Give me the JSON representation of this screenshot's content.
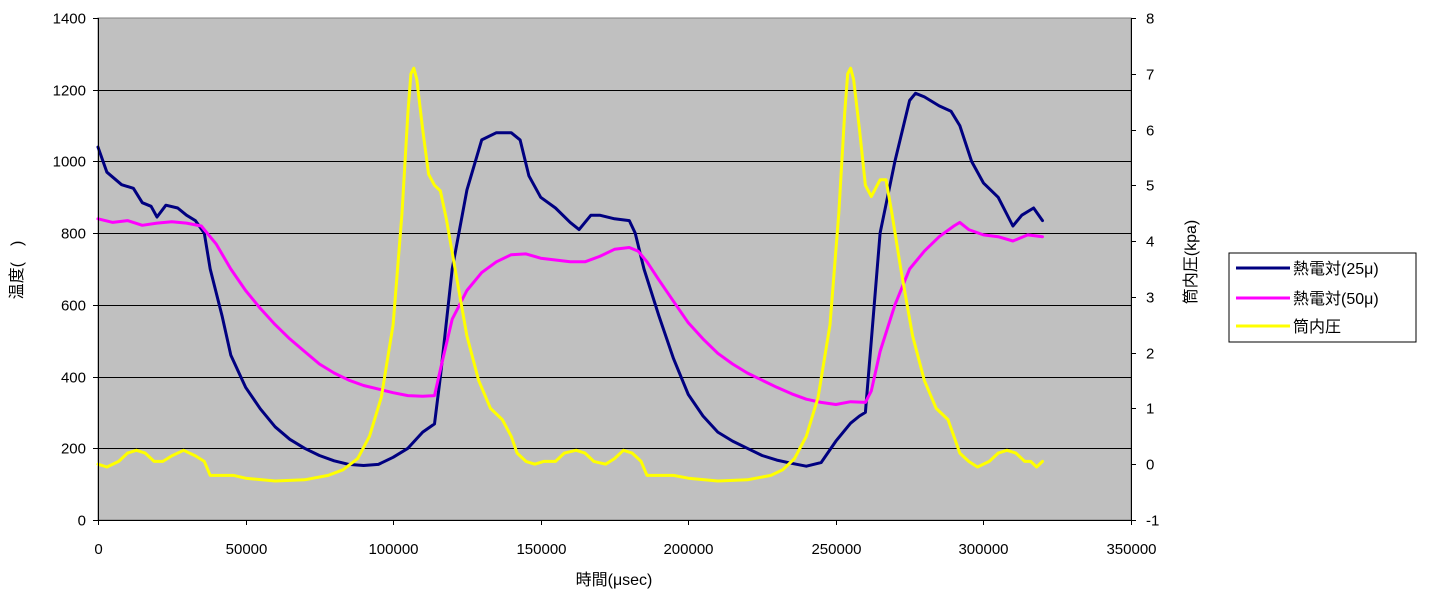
{
  "chart_data": {
    "type": "line",
    "title": "",
    "xlabel": "時間(μsec)",
    "ylabel": "温度(　)",
    "y2label": "筒内圧(kpa)",
    "xlim": [
      0,
      350000
    ],
    "ylim": [
      0,
      1400
    ],
    "y2lim": [
      -1,
      8
    ],
    "x_ticks": [
      0,
      50000,
      100000,
      150000,
      200000,
      250000,
      300000,
      350000
    ],
    "y_ticks": [
      0,
      200,
      400,
      600,
      800,
      1000,
      1200,
      1400
    ],
    "y2_ticks": [
      -1,
      0,
      1,
      2,
      3,
      4,
      5,
      6,
      7,
      8
    ],
    "grid": true,
    "plot_background": "#C0C0C0",
    "legend_position": "right",
    "series": [
      {
        "name": "熱電対(25μ)",
        "axis": "left",
        "color": "#000080",
        "points": [
          [
            0,
            1040
          ],
          [
            3000,
            970
          ],
          [
            8000,
            935
          ],
          [
            12000,
            925
          ],
          [
            15000,
            885
          ],
          [
            18000,
            875
          ],
          [
            20000,
            845
          ],
          [
            23000,
            878
          ],
          [
            27000,
            870
          ],
          [
            30000,
            850
          ],
          [
            33000,
            835
          ],
          [
            36000,
            800
          ],
          [
            38000,
            700
          ],
          [
            42000,
            570
          ],
          [
            45000,
            460
          ],
          [
            50000,
            370
          ],
          [
            55000,
            310
          ],
          [
            60000,
            260
          ],
          [
            65000,
            225
          ],
          [
            70000,
            200
          ],
          [
            75000,
            180
          ],
          [
            80000,
            165
          ],
          [
            85000,
            155
          ],
          [
            90000,
            152
          ],
          [
            95000,
            155
          ],
          [
            100000,
            175
          ],
          [
            105000,
            200
          ],
          [
            110000,
            245
          ],
          [
            114000,
            268
          ],
          [
            116000,
            400
          ],
          [
            120000,
            700
          ],
          [
            125000,
            920
          ],
          [
            130000,
            1060
          ],
          [
            135000,
            1080
          ],
          [
            140000,
            1080
          ],
          [
            143000,
            1060
          ],
          [
            146000,
            960
          ],
          [
            150000,
            900
          ],
          [
            155000,
            870
          ],
          [
            160000,
            830
          ],
          [
            163000,
            810
          ],
          [
            167000,
            850
          ],
          [
            170000,
            850
          ],
          [
            175000,
            840
          ],
          [
            180000,
            835
          ],
          [
            182000,
            800
          ],
          [
            185000,
            700
          ],
          [
            190000,
            570
          ],
          [
            195000,
            450
          ],
          [
            200000,
            350
          ],
          [
            205000,
            290
          ],
          [
            210000,
            245
          ],
          [
            215000,
            220
          ],
          [
            220000,
            200
          ],
          [
            225000,
            180
          ],
          [
            230000,
            167
          ],
          [
            235000,
            158
          ],
          [
            240000,
            150
          ],
          [
            245000,
            160
          ],
          [
            250000,
            220
          ],
          [
            255000,
            270
          ],
          [
            258000,
            290
          ],
          [
            260000,
            300
          ],
          [
            262000,
            500
          ],
          [
            265000,
            800
          ],
          [
            270000,
            1000
          ],
          [
            275000,
            1170
          ],
          [
            277000,
            1190
          ],
          [
            280000,
            1180
          ],
          [
            285000,
            1155
          ],
          [
            289000,
            1140
          ],
          [
            292000,
            1100
          ],
          [
            296000,
            1000
          ],
          [
            300000,
            940
          ],
          [
            305000,
            900
          ],
          [
            310000,
            820
          ],
          [
            313000,
            850
          ],
          [
            317000,
            870
          ],
          [
            320000,
            835
          ]
        ]
      },
      {
        "name": "熱電対(50μ)",
        "axis": "left",
        "color": "#FF00FF",
        "points": [
          [
            0,
            840
          ],
          [
            5000,
            830
          ],
          [
            10000,
            835
          ],
          [
            15000,
            822
          ],
          [
            20000,
            828
          ],
          [
            25000,
            832
          ],
          [
            30000,
            828
          ],
          [
            35000,
            820
          ],
          [
            40000,
            770
          ],
          [
            45000,
            700
          ],
          [
            50000,
            640
          ],
          [
            55000,
            590
          ],
          [
            60000,
            545
          ],
          [
            65000,
            505
          ],
          [
            70000,
            470
          ],
          [
            75000,
            435
          ],
          [
            80000,
            410
          ],
          [
            85000,
            390
          ],
          [
            90000,
            375
          ],
          [
            95000,
            365
          ],
          [
            100000,
            355
          ],
          [
            105000,
            347
          ],
          [
            110000,
            345
          ],
          [
            114000,
            347
          ],
          [
            116000,
            420
          ],
          [
            120000,
            560
          ],
          [
            125000,
            640
          ],
          [
            130000,
            690
          ],
          [
            135000,
            720
          ],
          [
            140000,
            740
          ],
          [
            145000,
            742
          ],
          [
            150000,
            730
          ],
          [
            155000,
            725
          ],
          [
            160000,
            720
          ],
          [
            165000,
            720
          ],
          [
            170000,
            735
          ],
          [
            175000,
            755
          ],
          [
            180000,
            760
          ],
          [
            183000,
            750
          ],
          [
            186000,
            720
          ],
          [
            190000,
            670
          ],
          [
            195000,
            610
          ],
          [
            200000,
            550
          ],
          [
            205000,
            505
          ],
          [
            210000,
            465
          ],
          [
            215000,
            435
          ],
          [
            220000,
            410
          ],
          [
            225000,
            390
          ],
          [
            230000,
            370
          ],
          [
            235000,
            352
          ],
          [
            240000,
            337
          ],
          [
            245000,
            328
          ],
          [
            250000,
            322
          ],
          [
            255000,
            330
          ],
          [
            260000,
            328
          ],
          [
            262000,
            360
          ],
          [
            265000,
            470
          ],
          [
            270000,
            600
          ],
          [
            275000,
            700
          ],
          [
            280000,
            750
          ],
          [
            285000,
            790
          ],
          [
            290000,
            820
          ],
          [
            292000,
            830
          ],
          [
            295000,
            810
          ],
          [
            300000,
            795
          ],
          [
            305000,
            790
          ],
          [
            310000,
            778
          ],
          [
            315000,
            795
          ],
          [
            320000,
            790
          ]
        ]
      },
      {
        "name": "筒内圧",
        "axis": "right",
        "color": "#FFFF00",
        "points": [
          [
            0,
            0
          ],
          [
            3000,
            -0.05
          ],
          [
            7000,
            0.05
          ],
          [
            10000,
            0.2
          ],
          [
            13000,
            0.25
          ],
          [
            16000,
            0.2
          ],
          [
            19000,
            0.05
          ],
          [
            22000,
            0.05
          ],
          [
            25000,
            0.15
          ],
          [
            29000,
            0.25
          ],
          [
            33000,
            0.15
          ],
          [
            36000,
            0.05
          ],
          [
            38000,
            -0.2
          ],
          [
            42000,
            -0.2
          ],
          [
            46000,
            -0.2
          ],
          [
            50000,
            -0.25
          ],
          [
            60000,
            -0.3
          ],
          [
            70000,
            -0.28
          ],
          [
            78000,
            -0.2
          ],
          [
            83000,
            -0.1
          ],
          [
            88000,
            0.1
          ],
          [
            92000,
            0.5
          ],
          [
            96000,
            1.2
          ],
          [
            100000,
            2.5
          ],
          [
            103000,
            4.5
          ],
          [
            105000,
            6.3
          ],
          [
            106000,
            7.0
          ],
          [
            107000,
            7.1
          ],
          [
            108000,
            6.9
          ],
          [
            110000,
            6.0
          ],
          [
            112000,
            5.2
          ],
          [
            114000,
            5.0
          ],
          [
            116000,
            4.9
          ],
          [
            118000,
            4.4
          ],
          [
            121000,
            3.5
          ],
          [
            125000,
            2.3
          ],
          [
            129000,
            1.5
          ],
          [
            133000,
            1.0
          ],
          [
            137000,
            0.8
          ],
          [
            140000,
            0.5
          ],
          [
            142000,
            0.2
          ],
          [
            145000,
            0.05
          ],
          [
            148000,
            0.0
          ],
          [
            151000,
            0.05
          ],
          [
            155000,
            0.05
          ],
          [
            158000,
            0.2
          ],
          [
            162000,
            0.25
          ],
          [
            165000,
            0.2
          ],
          [
            168000,
            0.05
          ],
          [
            172000,
            0.0
          ],
          [
            175000,
            0.1
          ],
          [
            178000,
            0.25
          ],
          [
            181000,
            0.2
          ],
          [
            184000,
            0.05
          ],
          [
            186000,
            -0.2
          ],
          [
            190000,
            -0.2
          ],
          [
            195000,
            -0.2
          ],
          [
            200000,
            -0.25
          ],
          [
            210000,
            -0.3
          ],
          [
            220000,
            -0.28
          ],
          [
            228000,
            -0.2
          ],
          [
            232000,
            -0.1
          ],
          [
            236000,
            0.1
          ],
          [
            240000,
            0.5
          ],
          [
            244000,
            1.2
          ],
          [
            248000,
            2.5
          ],
          [
            251000,
            4.5
          ],
          [
            253000,
            6.3
          ],
          [
            254000,
            7.0
          ],
          [
            255000,
            7.1
          ],
          [
            256000,
            6.9
          ],
          [
            258000,
            6.0
          ],
          [
            260000,
            5.0
          ],
          [
            262000,
            4.8
          ],
          [
            265000,
            5.1
          ],
          [
            267000,
            5.1
          ],
          [
            269000,
            4.5
          ],
          [
            272000,
            3.5
          ],
          [
            276000,
            2.3
          ],
          [
            280000,
            1.5
          ],
          [
            284000,
            1.0
          ],
          [
            288000,
            0.8
          ],
          [
            290000,
            0.5
          ],
          [
            292000,
            0.2
          ],
          [
            295000,
            0.05
          ],
          [
            298000,
            -0.05
          ],
          [
            302000,
            0.05
          ],
          [
            305000,
            0.2
          ],
          [
            308000,
            0.25
          ],
          [
            311000,
            0.2
          ],
          [
            314000,
            0.05
          ],
          [
            316000,
            0.05
          ],
          [
            318000,
            -0.05
          ],
          [
            320000,
            0.05
          ]
        ]
      }
    ]
  }
}
